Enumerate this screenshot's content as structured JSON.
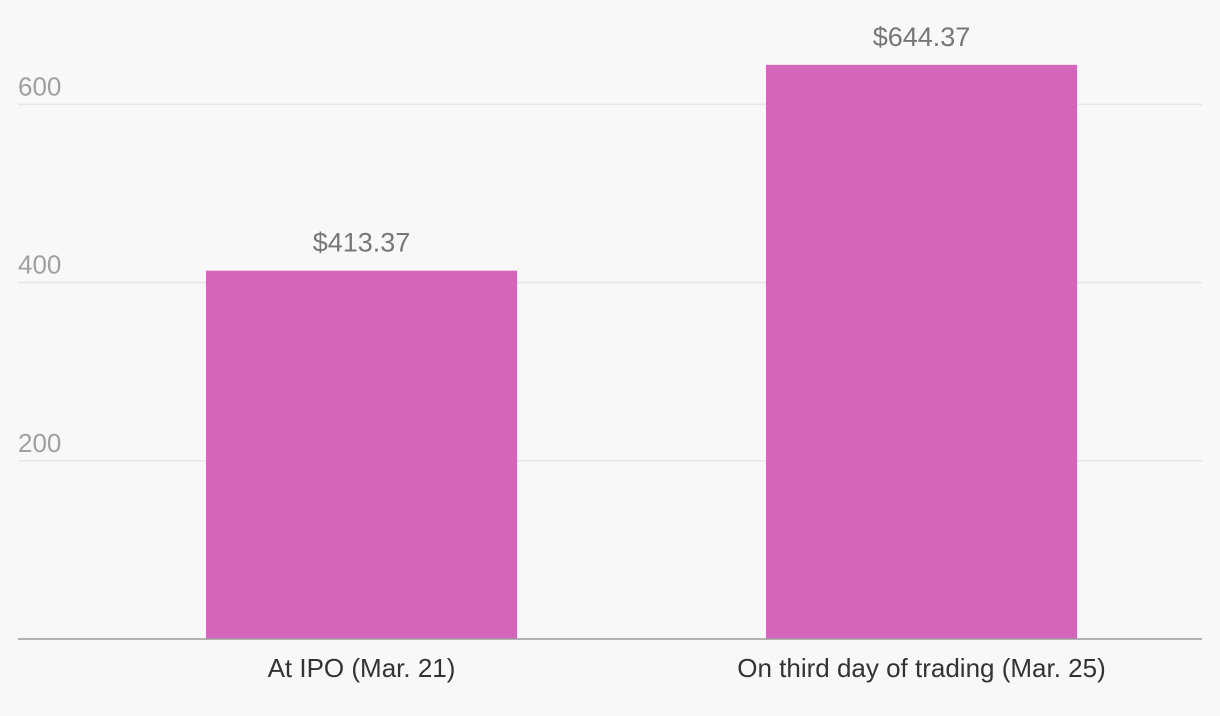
{
  "chart_data": {
    "type": "bar",
    "title": "",
    "xlabel": "",
    "ylabel": "",
    "categories": [
      "At IPO (Mar. 21)",
      "On third day of trading (Mar. 25)"
    ],
    "values": [
      413.37,
      644.37
    ],
    "data_labels": [
      "$413.37",
      "$644.37"
    ],
    "yticks": [
      200,
      400,
      600
    ],
    "ytick_labels": [
      "200",
      "400",
      "600"
    ],
    "ylim": [
      0,
      644.37
    ],
    "grid": true,
    "bar_color": "#d365ba"
  }
}
